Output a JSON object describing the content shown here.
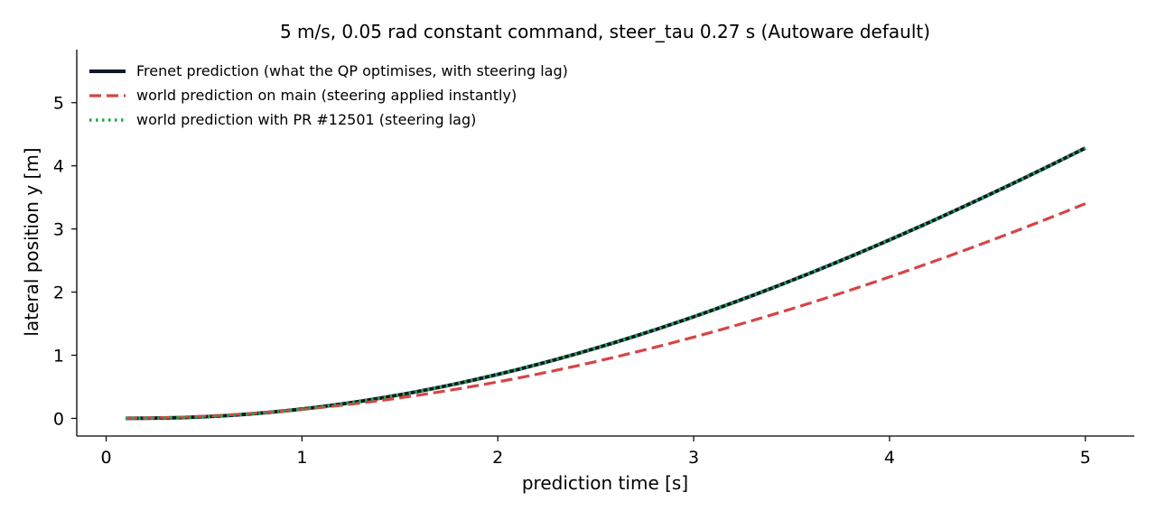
{
  "chart_data": {
    "type": "line",
    "title": "5 m/s, 0.05 rad constant command, steer_tau 0.27 s (Autoware default)",
    "xlabel": "prediction time [s]",
    "ylabel": "lateral position y [m]",
    "xlim": [
      -0.15,
      5.25
    ],
    "ylim": [
      -0.28,
      5.84
    ],
    "xticks": [
      0,
      1,
      2,
      3,
      4,
      5
    ],
    "yticks": [
      0,
      1,
      2,
      3,
      4,
      5
    ],
    "grid": false,
    "legend_position": "top-left",
    "x": [
      0.1,
      0.2,
      0.3,
      0.4,
      0.5,
      0.6,
      0.7,
      0.8,
      0.9,
      1.0,
      1.1,
      1.2,
      1.3,
      1.4,
      1.5,
      1.6,
      1.7,
      1.8,
      1.9,
      2.0,
      2.1,
      2.2,
      2.3,
      2.4,
      2.5,
      2.6,
      2.7,
      2.8,
      2.9,
      3.0,
      3.1,
      3.2,
      3.3,
      3.4,
      3.5,
      3.6,
      3.7,
      3.8,
      3.9,
      4.0,
      4.1,
      4.2,
      4.3,
      4.4,
      4.5,
      4.6,
      4.7,
      4.8,
      4.9,
      5.0
    ],
    "series": [
      {
        "name": "Frenet prediction (what the QP optimises, with steering lag)",
        "color": "#111827",
        "dash": "solid",
        "values": [
          0.0001,
          0.0015,
          0.0055,
          0.0131,
          0.0248,
          0.0408,
          0.0611,
          0.0857,
          0.1145,
          0.1475,
          0.1846,
          0.2258,
          0.271,
          0.3202,
          0.3734,
          0.4305,
          0.4914,
          0.5561,
          0.6246,
          0.6968,
          0.7726,
          0.852,
          0.935,
          1.0214,
          1.1112,
          1.2044,
          1.3009,
          1.4006,
          1.5035,
          1.6095,
          1.7185,
          1.8305,
          1.9455,
          2.0633,
          2.1839,
          2.3072,
          2.4333,
          2.5619,
          2.6931,
          2.8267,
          2.9627,
          3.1011,
          3.2416,
          3.3844,
          3.5292,
          3.6761,
          3.8249,
          3.9755,
          4.1279,
          4.282
        ]
      },
      {
        "name": "world prediction on main (steering applied instantly)",
        "color": "#d64545",
        "dash": "dashed",
        "values": [
          0.0009,
          0.0047,
          0.0114,
          0.0212,
          0.034,
          0.0497,
          0.0685,
          0.0902,
          0.1149,
          0.1425,
          0.1731,
          0.2066,
          0.243,
          0.2823,
          0.3245,
          0.3695,
          0.4173,
          0.468,
          0.5214,
          0.5776,
          0.6366,
          0.6983,
          0.7627,
          0.8297,
          0.8994,
          0.9717,
          1.0466,
          1.124,
          1.204,
          1.2864,
          1.3713,
          1.4586,
          1.5482,
          1.6403,
          1.7346,
          1.8312,
          1.9301,
          2.0311,
          2.1343,
          2.2397,
          2.3471,
          2.4565,
          2.5679,
          2.6813,
          2.7966,
          2.9138,
          3.0327,
          3.1535,
          3.276,
          3.4001
        ]
      },
      {
        "name": "world prediction with PR #12501 (steering lag)",
        "color": "#1fa84f",
        "dash": "dotted",
        "values": [
          0.0001,
          0.0015,
          0.0055,
          0.0131,
          0.0248,
          0.0408,
          0.0611,
          0.0857,
          0.1145,
          0.1475,
          0.1846,
          0.2258,
          0.271,
          0.3202,
          0.3734,
          0.4305,
          0.4914,
          0.5561,
          0.6246,
          0.6968,
          0.7726,
          0.852,
          0.935,
          1.0214,
          1.1112,
          1.2044,
          1.3009,
          1.4006,
          1.5035,
          1.6095,
          1.7185,
          1.8305,
          1.9455,
          2.0633,
          2.1839,
          2.3072,
          2.4333,
          2.5619,
          2.6931,
          2.8267,
          2.9627,
          3.1011,
          3.2416,
          3.3844,
          3.5292,
          3.6761,
          3.8249,
          3.9755,
          4.1279,
          4.282
        ]
      }
    ]
  }
}
